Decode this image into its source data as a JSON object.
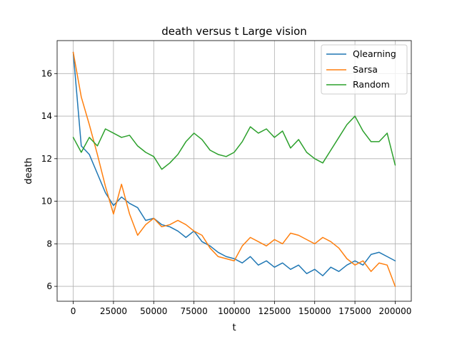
{
  "chart_data": {
    "type": "line",
    "title": "death versus t Large vision",
    "xlabel": "t",
    "ylabel": "death",
    "xlim": [
      -10000,
      210000
    ],
    "ylim": [
      5.3,
      17.55
    ],
    "xticks": [
      0,
      25000,
      50000,
      75000,
      100000,
      125000,
      150000,
      175000,
      200000
    ],
    "xtick_labels": [
      "0",
      "25000",
      "50000",
      "75000",
      "100000",
      "125000",
      "150000",
      "175000",
      "200000"
    ],
    "yticks": [
      6,
      8,
      10,
      12,
      14,
      16
    ],
    "ytick_labels": [
      "6",
      "8",
      "10",
      "12",
      "14",
      "16"
    ],
    "grid": true,
    "legend_position": "top-right",
    "series": [
      {
        "name": "Qlearning",
        "color": "#1f77b4",
        "x": [
          0,
          5000,
          10000,
          15000,
          20000,
          25000,
          30000,
          35000,
          40000,
          45000,
          50000,
          55000,
          60000,
          65000,
          70000,
          75000,
          80000,
          85000,
          90000,
          95000,
          100000,
          105000,
          110000,
          115000,
          120000,
          125000,
          130000,
          135000,
          140000,
          145000,
          150000,
          155000,
          160000,
          165000,
          170000,
          175000,
          180000,
          185000,
          190000,
          195000,
          200000
        ],
        "y": [
          17.0,
          12.6,
          12.2,
          11.3,
          10.4,
          9.8,
          10.2,
          9.9,
          9.7,
          9.1,
          9.2,
          8.9,
          8.8,
          8.6,
          8.3,
          8.6,
          8.1,
          7.9,
          7.6,
          7.4,
          7.3,
          7.1,
          7.4,
          7.0,
          7.2,
          6.9,
          7.1,
          6.8,
          7.0,
          6.6,
          6.8,
          6.5,
          6.9,
          6.7,
          7.0,
          7.2,
          7.0,
          7.5,
          7.6,
          7.4,
          7.2
        ]
      },
      {
        "name": "Sarsa",
        "color": "#ff7f0e",
        "x": [
          0,
          5000,
          10000,
          15000,
          20000,
          25000,
          30000,
          35000,
          40000,
          45000,
          50000,
          55000,
          60000,
          65000,
          70000,
          75000,
          80000,
          85000,
          90000,
          95000,
          100000,
          105000,
          110000,
          115000,
          120000,
          125000,
          130000,
          135000,
          140000,
          145000,
          150000,
          155000,
          160000,
          165000,
          170000,
          175000,
          180000,
          185000,
          190000,
          195000,
          200000
        ],
        "y": [
          17.0,
          14.9,
          13.6,
          12.2,
          10.7,
          9.4,
          10.8,
          9.4,
          8.4,
          8.9,
          9.2,
          8.8,
          8.9,
          9.1,
          8.9,
          8.6,
          8.4,
          7.8,
          7.4,
          7.3,
          7.2,
          7.9,
          8.3,
          8.1,
          7.9,
          8.2,
          8.0,
          8.5,
          8.4,
          8.2,
          8.0,
          8.3,
          8.1,
          7.8,
          7.3,
          7.0,
          7.2,
          6.7,
          7.1,
          7.0,
          6.0
        ]
      },
      {
        "name": "Random",
        "color": "#2ca02c",
        "x": [
          0,
          5000,
          10000,
          15000,
          20000,
          25000,
          30000,
          35000,
          40000,
          45000,
          50000,
          55000,
          60000,
          65000,
          70000,
          75000,
          80000,
          85000,
          90000,
          95000,
          100000,
          105000,
          110000,
          115000,
          120000,
          125000,
          130000,
          135000,
          140000,
          145000,
          150000,
          155000,
          160000,
          165000,
          170000,
          175000,
          180000,
          185000,
          190000,
          195000,
          200000
        ],
        "y": [
          13.0,
          12.3,
          13.0,
          12.6,
          13.4,
          13.2,
          13.0,
          13.1,
          12.6,
          12.3,
          12.1,
          11.5,
          11.8,
          12.2,
          12.8,
          13.2,
          12.9,
          12.4,
          12.2,
          12.1,
          12.3,
          12.8,
          13.5,
          13.2,
          13.4,
          13.0,
          13.3,
          12.5,
          12.9,
          12.3,
          12.0,
          11.8,
          12.4,
          13.0,
          13.6,
          14.0,
          13.3,
          12.8,
          12.8,
          13.2,
          11.7
        ]
      }
    ]
  }
}
